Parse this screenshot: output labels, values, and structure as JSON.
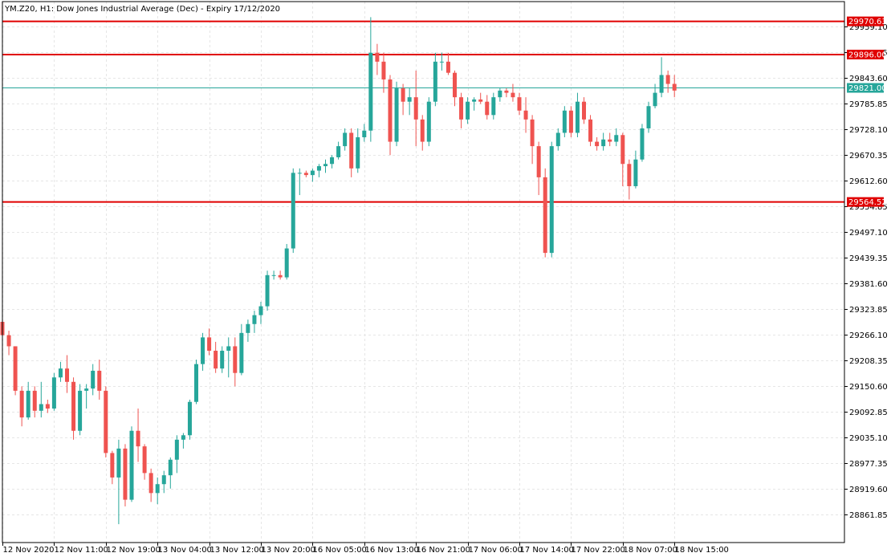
{
  "header": {
    "title": "YM.Z20, H1:  Dow Jones Industrial Average (Dec) - Expiry 17/12/2020"
  },
  "colors": {
    "bull": "#26a69a",
    "bear": "#ef5350",
    "level_line": "#e00000",
    "current_line": "#26a69a",
    "grid": "#e6e6e6",
    "axis": "#000000"
  },
  "chart_data": {
    "type": "candlestick",
    "title": "YM.Z20, H1:  Dow Jones Industrial Average (Dec) - Expiry 17/12/2020",
    "ylim": [
      28820,
      29990
    ],
    "y_ticks": [
      "29959.10",
      "29901.35",
      "29843.60",
      "29785.85",
      "29728.10",
      "29670.35",
      "29612.60",
      "29554.85",
      "29497.10",
      "29439.35",
      "29381.60",
      "29323.85",
      "29266.10",
      "29208.35",
      "29150.60",
      "29092.85",
      "29035.10",
      "28977.35",
      "28919.60",
      "28861.85"
    ],
    "x_ticks": [
      "12 Nov 2020",
      "12 Nov 11:00",
      "12 Nov 19:00",
      "13 Nov 04:00",
      "13 Nov 12:00",
      "13 Nov 20:00",
      "16 Nov 05:00",
      "16 Nov 13:00",
      "16 Nov 21:00",
      "17 Nov 06:00",
      "17 Nov 14:00",
      "17 Nov 22:00",
      "18 Nov 07:00",
      "18 Nov 15:00"
    ],
    "x_tick_index": [
      0,
      8,
      16,
      24,
      32,
      40,
      48,
      56,
      64,
      72,
      80,
      88,
      96,
      104
    ],
    "horizontal_levels": [
      {
        "value": 29970.63,
        "label": "29970.63"
      },
      {
        "value": 29896.0,
        "label": "29896.00"
      },
      {
        "value": 29564.52,
        "label": "29564.52"
      }
    ],
    "current_price": {
      "value": 29821.0,
      "label": "29821.00"
    },
    "candles": [
      [
        29295,
        29305,
        29230,
        29265
      ],
      [
        29265,
        29275,
        29220,
        29240
      ],
      [
        29240,
        29240,
        29130,
        29140
      ],
      [
        29140,
        29150,
        29060,
        29080
      ],
      [
        29080,
        29160,
        29075,
        29140
      ],
      [
        29140,
        29150,
        29080,
        29095
      ],
      [
        29095,
        29160,
        29080,
        29110
      ],
      [
        29110,
        29120,
        29090,
        29100
      ],
      [
        29100,
        29180,
        29095,
        29170
      ],
      [
        29170,
        29205,
        29160,
        29190
      ],
      [
        29190,
        29220,
        29135,
        29160
      ],
      [
        29160,
        29170,
        29030,
        29050
      ],
      [
        29050,
        29155,
        29040,
        29140
      ],
      [
        29140,
        29155,
        29100,
        29145
      ],
      [
        29145,
        29200,
        29130,
        29185
      ],
      [
        29185,
        29210,
        29120,
        29140
      ],
      [
        29140,
        29150,
        28990,
        29000
      ],
      [
        29000,
        29005,
        28930,
        28945
      ],
      [
        28945,
        29030,
        28840,
        29010
      ],
      [
        29010,
        29020,
        28880,
        28895
      ],
      [
        28895,
        29060,
        28890,
        29050
      ],
      [
        29050,
        29100,
        28980,
        29015
      ],
      [
        29015,
        29020,
        28940,
        28955
      ],
      [
        28955,
        28965,
        28890,
        28910
      ],
      [
        28910,
        28945,
        28885,
        28930
      ],
      [
        28930,
        28960,
        28910,
        28950
      ],
      [
        28950,
        28990,
        28920,
        28985
      ],
      [
        28985,
        29040,
        28955,
        29030
      ],
      [
        29030,
        29045,
        29010,
        29040
      ],
      [
        29040,
        29120,
        29030,
        29115
      ],
      [
        29115,
        29210,
        29110,
        29200
      ],
      [
        29200,
        29270,
        29185,
        29260
      ],
      [
        29260,
        29280,
        29220,
        29230
      ],
      [
        29230,
        29250,
        29180,
        29190
      ],
      [
        29190,
        29240,
        29180,
        29230
      ],
      [
        29230,
        29260,
        29170,
        29240
      ],
      [
        29240,
        29260,
        29150,
        29180
      ],
      [
        29180,
        29290,
        29175,
        29270
      ],
      [
        29270,
        29300,
        29250,
        29290
      ],
      [
        29290,
        29320,
        29270,
        29310
      ],
      [
        29310,
        29340,
        29290,
        29330
      ],
      [
        29330,
        29410,
        29320,
        29400
      ],
      [
        29400,
        29410,
        29390,
        29400
      ],
      [
        29400,
        29410,
        29390,
        29395
      ],
      [
        29395,
        29470,
        29390,
        29460
      ],
      [
        29460,
        29640,
        29450,
        29630
      ],
      [
        29630,
        29640,
        29580,
        29630
      ],
      [
        29630,
        29635,
        29620,
        29625
      ],
      [
        29625,
        29640,
        29610,
        29635
      ],
      [
        29635,
        29650,
        29620,
        29645
      ],
      [
        29645,
        29660,
        29630,
        29650
      ],
      [
        29650,
        29670,
        29640,
        29665
      ],
      [
        29665,
        29700,
        29660,
        29690
      ],
      [
        29690,
        29730,
        29680,
        29720
      ],
      [
        29720,
        29730,
        29620,
        29640
      ],
      [
        29640,
        29730,
        29630,
        29710
      ],
      [
        29710,
        29740,
        29700,
        29725
      ],
      [
        29725,
        29980,
        29700,
        29900
      ],
      [
        29900,
        29920,
        29850,
        29880
      ],
      [
        29880,
        29900,
        29810,
        29840
      ],
      [
        29840,
        29850,
        29670,
        29700
      ],
      [
        29700,
        29835,
        29690,
        29820
      ],
      [
        29820,
        29830,
        29760,
        29790
      ],
      [
        29790,
        29820,
        29760,
        29800
      ],
      [
        29800,
        29860,
        29690,
        29750
      ],
      [
        29750,
        29760,
        29680,
        29700
      ],
      [
        29700,
        29800,
        29690,
        29790
      ],
      [
        29790,
        29900,
        29780,
        29880
      ],
      [
        29880,
        29900,
        29860,
        29880
      ],
      [
        29880,
        29900,
        29850,
        29855
      ],
      [
        29855,
        29860,
        29780,
        29800
      ],
      [
        29800,
        29810,
        29730,
        29750
      ],
      [
        29750,
        29800,
        29740,
        29790
      ],
      [
        29790,
        29800,
        29770,
        29795
      ],
      [
        29795,
        29810,
        29785,
        29790
      ],
      [
        29790,
        29805,
        29750,
        29760
      ],
      [
        29760,
        29810,
        29750,
        29800
      ],
      [
        29800,
        29820,
        29790,
        29815
      ],
      [
        29815,
        29820,
        29800,
        29810
      ],
      [
        29810,
        29830,
        29790,
        29800
      ],
      [
        29800,
        29810,
        29760,
        29770
      ],
      [
        29770,
        29800,
        29720,
        29750
      ],
      [
        29750,
        29760,
        29650,
        29690
      ],
      [
        29690,
        29700,
        29580,
        29620
      ],
      [
        29620,
        29640,
        29440,
        29450
      ],
      [
        29450,
        29700,
        29440,
        29690
      ],
      [
        29690,
        29730,
        29680,
        29720
      ],
      [
        29720,
        29780,
        29710,
        29770
      ],
      [
        29770,
        29780,
        29710,
        29720
      ],
      [
        29720,
        29810,
        29710,
        29790
      ],
      [
        29790,
        29800,
        29740,
        29750
      ],
      [
        29750,
        29760,
        29690,
        29700
      ],
      [
        29700,
        29710,
        29680,
        29690
      ],
      [
        29690,
        29720,
        29680,
        29705
      ],
      [
        29705,
        29720,
        29690,
        29700
      ],
      [
        29700,
        29730,
        29690,
        29715
      ],
      [
        29715,
        29720,
        29600,
        29650
      ],
      [
        29650,
        29660,
        29570,
        29600
      ],
      [
        29600,
        29680,
        29595,
        29660
      ],
      [
        29660,
        29740,
        29655,
        29730
      ],
      [
        29730,
        29790,
        29720,
        29780
      ],
      [
        29780,
        29830,
        29775,
        29810
      ],
      [
        29810,
        29890,
        29800,
        29850
      ],
      [
        29850,
        29860,
        29810,
        29830
      ],
      [
        29830,
        29850,
        29800,
        29815
      ]
    ]
  }
}
